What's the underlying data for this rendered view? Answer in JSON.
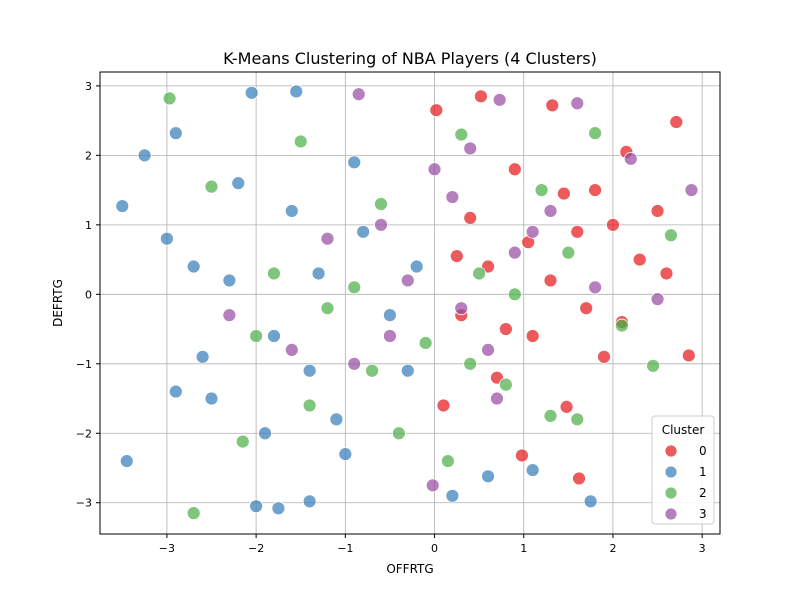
{
  "chart_data": {
    "type": "scatter",
    "title": "K-Means Clustering of NBA Players (4 Clusters)",
    "xlabel": "OFFRTG",
    "ylabel": "DEFRTG",
    "xlim": [
      -3.75,
      3.2
    ],
    "ylim": [
      -3.45,
      3.2
    ],
    "xticks": [
      -3,
      -2,
      -1,
      0,
      1,
      2,
      3
    ],
    "yticks": [
      -3,
      -2,
      -1,
      0,
      1,
      2,
      3
    ],
    "grid": true,
    "legend": {
      "title": "Cluster",
      "placement": "lower-right"
    },
    "series": [
      {
        "name": "0",
        "color": "#e41a1c",
        "points": [
          [
            2.71,
            2.48
          ],
          [
            2.85,
            -0.88
          ],
          [
            1.62,
            -2.65
          ],
          [
            0.98,
            -2.32
          ],
          [
            1.48,
            -1.62
          ],
          [
            0.52,
            2.85
          ],
          [
            0.02,
            2.65
          ],
          [
            2.15,
            2.05
          ],
          [
            1.32,
            2.72
          ],
          [
            0.1,
            -1.6
          ],
          [
            1.8,
            1.5
          ],
          [
            0.6,
            0.4
          ],
          [
            1.1,
            -0.6
          ],
          [
            2.3,
            0.5
          ],
          [
            0.3,
            -0.3
          ],
          [
            1.6,
            0.9
          ],
          [
            0.9,
            1.8
          ],
          [
            2.1,
            -0.4
          ],
          [
            1.3,
            0.2
          ],
          [
            0.7,
            -1.2
          ],
          [
            1.9,
            -0.9
          ],
          [
            2.5,
            1.2
          ],
          [
            0.4,
            1.1
          ],
          [
            1.7,
            -0.2
          ],
          [
            1.05,
            0.75
          ],
          [
            2.0,
            1.0
          ],
          [
            0.8,
            -0.5
          ],
          [
            1.45,
            1.45
          ],
          [
            0.25,
            0.55
          ],
          [
            2.6,
            0.3
          ]
        ]
      },
      {
        "name": "1",
        "color": "#377eb8",
        "points": [
          [
            -3.5,
            1.27
          ],
          [
            -3.45,
            -2.4
          ],
          [
            -3.25,
            2.0
          ],
          [
            -2.9,
            2.32
          ],
          [
            -2.05,
            2.9
          ],
          [
            -1.55,
            2.92
          ],
          [
            -1.75,
            -3.08
          ],
          [
            -2.0,
            -3.05
          ],
          [
            -1.4,
            -2.98
          ],
          [
            -3.0,
            0.8
          ],
          [
            -2.5,
            -1.5
          ],
          [
            -2.2,
            1.6
          ],
          [
            -1.8,
            -0.6
          ],
          [
            -1.3,
            0.3
          ],
          [
            -2.6,
            -0.9
          ],
          [
            -1.1,
            -1.8
          ],
          [
            -0.8,
            0.9
          ],
          [
            -2.9,
            -1.4
          ],
          [
            -1.6,
            1.2
          ],
          [
            -0.5,
            -0.3
          ],
          [
            -2.3,
            0.2
          ],
          [
            -1.0,
            -2.3
          ],
          [
            -0.3,
            -1.1
          ],
          [
            -2.7,
            0.4
          ],
          [
            -1.4,
            -1.1
          ],
          [
            -0.9,
            1.9
          ],
          [
            -0.2,
            0.4
          ],
          [
            -1.9,
            -2.0
          ],
          [
            0.2,
            -2.9
          ],
          [
            1.75,
            -2.98
          ],
          [
            0.6,
            -2.62
          ],
          [
            1.1,
            -2.53
          ]
        ]
      },
      {
        "name": "2",
        "color": "#4daf4a",
        "points": [
          [
            -2.97,
            2.82
          ],
          [
            -2.7,
            -3.15
          ],
          [
            -2.15,
            -2.12
          ],
          [
            -1.5,
            2.2
          ],
          [
            -2.5,
            1.55
          ],
          [
            -1.2,
            -0.2
          ],
          [
            -0.6,
            1.3
          ],
          [
            -1.8,
            0.3
          ],
          [
            -0.4,
            -2.0
          ],
          [
            0.15,
            -2.4
          ],
          [
            0.8,
            -1.3
          ],
          [
            1.3,
            -1.75
          ],
          [
            1.6,
            -1.8
          ],
          [
            2.45,
            -1.03
          ],
          [
            2.65,
            0.85
          ],
          [
            1.8,
            2.32
          ],
          [
            0.3,
            2.3
          ],
          [
            -0.9,
            0.1
          ],
          [
            -1.4,
            -1.6
          ],
          [
            0.5,
            0.3
          ],
          [
            1.2,
            1.5
          ],
          [
            -0.1,
            -0.7
          ],
          [
            2.1,
            -0.45
          ],
          [
            -0.7,
            -1.1
          ],
          [
            0.9,
            0.0
          ],
          [
            -2.0,
            -0.6
          ],
          [
            0.4,
            -1.0
          ],
          [
            1.5,
            0.6
          ]
        ]
      },
      {
        "name": "3",
        "color": "#984ea3",
        "points": [
          [
            -0.85,
            2.88
          ],
          [
            0.73,
            2.8
          ],
          [
            -0.02,
            -2.75
          ],
          [
            2.88,
            1.5
          ],
          [
            2.5,
            -0.07
          ],
          [
            1.6,
            2.75
          ],
          [
            2.2,
            1.95
          ],
          [
            -1.2,
            0.8
          ],
          [
            -0.5,
            -0.6
          ],
          [
            0.2,
            1.4
          ],
          [
            0.9,
            0.6
          ],
          [
            -0.3,
            0.2
          ],
          [
            0.6,
            -0.8
          ],
          [
            -0.9,
            -1.0
          ],
          [
            1.3,
            1.2
          ],
          [
            0.0,
            1.8
          ],
          [
            -1.6,
            -0.8
          ],
          [
            0.4,
            2.1
          ],
          [
            1.8,
            0.1
          ],
          [
            -0.6,
            1.0
          ],
          [
            0.7,
            -1.5
          ],
          [
            1.1,
            0.9
          ],
          [
            -2.3,
            -0.3
          ],
          [
            0.3,
            -0.2
          ]
        ]
      }
    ]
  }
}
